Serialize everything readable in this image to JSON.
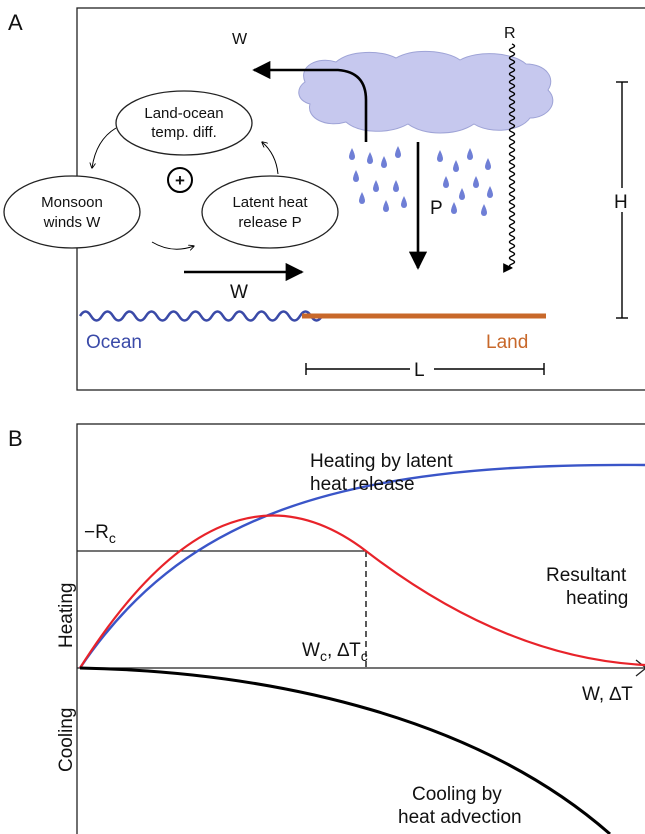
{
  "panel_a": {
    "label": "A",
    "w_top": "W",
    "r": "R",
    "p": "P",
    "h": "H",
    "w_bottom": "W",
    "l": "L",
    "ocean": "Ocean",
    "land": "Land",
    "plus": "+",
    "loop": {
      "land_ocean_1": "Land-ocean",
      "land_ocean_2": "temp. diff.",
      "monsoon_1": "Monsoon",
      "monsoon_2": "winds W",
      "latent_1": "Latent heat",
      "latent_2": "release P"
    },
    "colors": {
      "cloud": "#c6c8ee",
      "rain": "#6f7fd6",
      "ocean": "#3a4aa8",
      "land": "#c8682a"
    }
  },
  "panel_b": {
    "label": "B",
    "rc_minus": "−R",
    "rc_sub": "c",
    "heating": "Heating",
    "cooling": "Cooling",
    "wc_w": "W",
    "wc_sub1": "c",
    "wc_mid": ", ∆T",
    "wc_sub2": "c",
    "x_axis": "W, ∆T",
    "curve_latent_1": "Heating by latent",
    "curve_latent_2": "heat release",
    "curve_result_1": "Resultant",
    "curve_result_2": "heating",
    "curve_cool_1": "Cooling by",
    "curve_cool_2": "heat advection",
    "colors": {
      "latent": "#3a55c8",
      "resultant": "#e8232a",
      "cooling": "#000000"
    }
  }
}
